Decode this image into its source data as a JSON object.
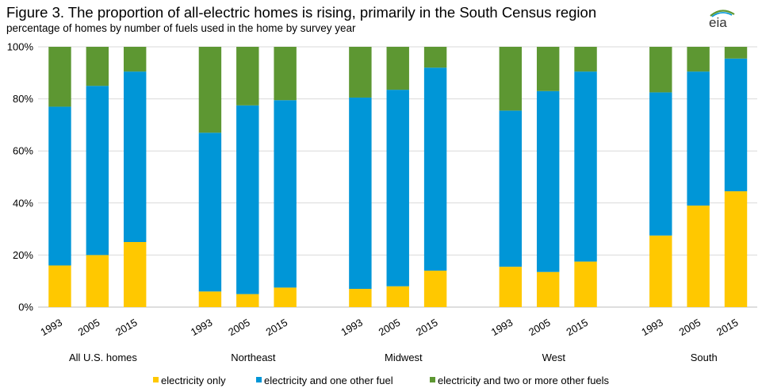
{
  "title": "Figure 3. The proportion of all-electric homes is rising, primarily in the South Census region",
  "subtitle": "percentage of homes by number of fuels used in the home by survey year",
  "logo_text": "eia",
  "chart_data": {
    "type": "bar",
    "stacked": true,
    "groups": [
      {
        "name": "All U.S. homes",
        "categories": [
          "1993",
          "2005",
          "2015"
        ]
      },
      {
        "name": "Northeast",
        "categories": [
          "1993",
          "2005",
          "2015"
        ]
      },
      {
        "name": "Midwest",
        "categories": [
          "1993",
          "2005",
          "2015"
        ]
      },
      {
        "name": "West",
        "categories": [
          "1993",
          "2005",
          "2015"
        ]
      },
      {
        "name": "South",
        "categories": [
          "1993",
          "2005",
          "2015"
        ]
      }
    ],
    "series": [
      {
        "name": "electricity only",
        "color": "#ffc800",
        "values": [
          16,
          20,
          25,
          6,
          5,
          7.5,
          7,
          8,
          14,
          15.5,
          13.5,
          17.5,
          27.5,
          39,
          44.5
        ]
      },
      {
        "name": "electricity and one other fuel",
        "color": "#0096d7",
        "values": [
          61,
          65,
          65.5,
          61,
          72.5,
          72,
          73.5,
          75.5,
          78,
          60,
          69.5,
          73,
          55,
          51.5,
          51
        ]
      },
      {
        "name": "electricity and two or more other fuels",
        "color": "#5d9732",
        "values": [
          23,
          15,
          9.5,
          33,
          22.5,
          20.5,
          19.5,
          16.5,
          8,
          24.5,
          17,
          9.5,
          17.5,
          9.5,
          4.5
        ]
      }
    ],
    "ylim": [
      0,
      100
    ],
    "yticks": [
      "0%",
      "20%",
      "40%",
      "60%",
      "80%",
      "100%"
    ],
    "grid": true,
    "legend_position": "bottom"
  }
}
